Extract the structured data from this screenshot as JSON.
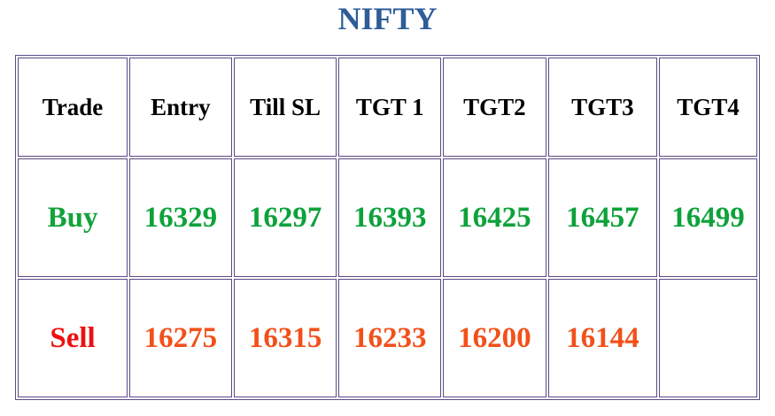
{
  "title": "NIFTY",
  "table": {
    "header": [
      "Trade",
      "Entry",
      "Till SL",
      "TGT 1",
      "TGT2",
      "TGT3",
      "TGT4"
    ],
    "rows": [
      [
        "Buy",
        16329,
        16297,
        16393,
        16425,
        16457,
        16499
      ],
      [
        "Sell",
        16275,
        16315,
        16233,
        16200,
        16144
      ]
    ]
  }
}
